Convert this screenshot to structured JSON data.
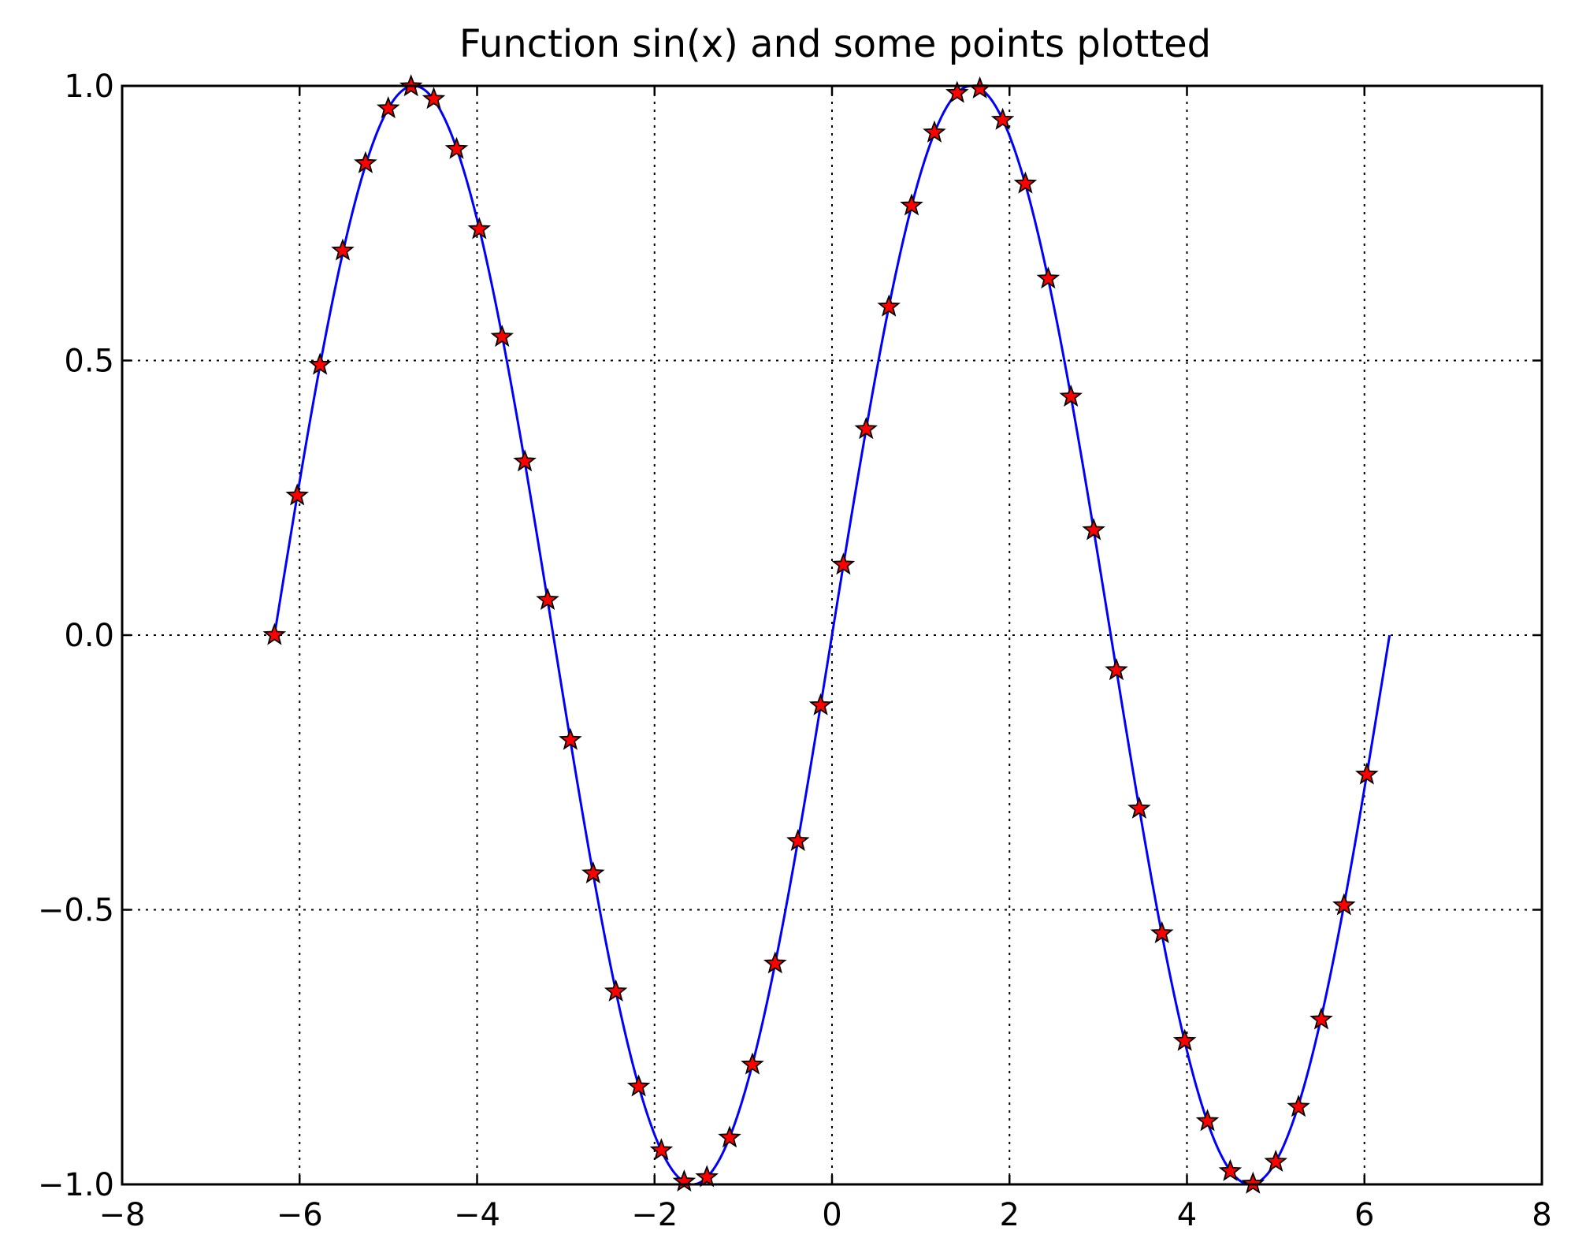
{
  "chart_data": {
    "type": "line",
    "title": "Function sin(x) and some points plotted",
    "xlabel": "",
    "ylabel": "",
    "xlim": [
      -8,
      8
    ],
    "ylim": [
      -1.0,
      1.0
    ],
    "grid": true,
    "x_ticks": [
      -8,
      -6,
      -4,
      -2,
      0,
      2,
      4,
      6,
      8
    ],
    "x_tick_labels": [
      "−8",
      "−6",
      "−4",
      "−2",
      "0",
      "2",
      "4",
      "6",
      "8"
    ],
    "y_ticks": [
      -1.0,
      -0.5,
      0.0,
      0.5,
      1.0
    ],
    "y_tick_labels": [
      "−1.0",
      "−0.5",
      "0.0",
      "0.5",
      "1.0"
    ],
    "series": [
      {
        "function": "sin(x)",
        "style": "line",
        "x_range": [
          -6.283,
          6.283
        ],
        "color": "#0000ff"
      },
      {
        "style": "markers",
        "marker": "star",
        "color": "#ff0000",
        "edge_color": "#000000",
        "x": [
          -6.283,
          -6.027,
          -5.77,
          -5.514,
          -5.257,
          -5.001,
          -4.744,
          -4.488,
          -4.231,
          -3.975,
          -3.718,
          -3.462,
          -3.205,
          -2.949,
          -2.692,
          -2.436,
          -2.179,
          -1.923,
          -1.666,
          -1.41,
          -1.154,
          -0.897,
          -0.641,
          -0.384,
          -0.128,
          0.128,
          0.384,
          0.641,
          0.897,
          1.154,
          1.41,
          1.666,
          1.923,
          2.179,
          2.436,
          2.692,
          2.949,
          3.205,
          3.462,
          3.718,
          3.975,
          4.231,
          4.488,
          4.744,
          5.001,
          5.257,
          5.514,
          5.77,
          6.027
        ],
        "y": [
          0.0,
          0.254,
          0.492,
          0.7,
          0.859,
          0.959,
          0.999,
          0.976,
          0.885,
          0.739,
          0.543,
          0.316,
          0.064,
          -0.191,
          -0.434,
          -0.649,
          -0.822,
          -0.938,
          -0.995,
          -0.987,
          -0.915,
          -0.782,
          -0.598,
          -0.375,
          -0.128,
          0.128,
          0.375,
          0.598,
          0.782,
          0.915,
          0.987,
          0.995,
          0.938,
          0.822,
          0.649,
          0.434,
          0.191,
          -0.064,
          -0.316,
          -0.543,
          -0.739,
          -0.885,
          -0.976,
          -0.999,
          -0.959,
          -0.859,
          -0.7,
          -0.492,
          -0.254
        ]
      }
    ]
  }
}
